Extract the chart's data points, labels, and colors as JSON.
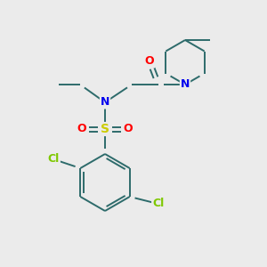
{
  "bg_color": "#ebebeb",
  "bond_color": "#2d6b6b",
  "atom_colors": {
    "O": "#ff0000",
    "N": "#0000ee",
    "S": "#cccc00",
    "Cl": "#7ec800",
    "C": "#2d6b6b"
  },
  "bond_lw": 1.4,
  "font_size": 9,
  "fig_size": [
    3.0,
    3.0
  ],
  "dpi": 100
}
